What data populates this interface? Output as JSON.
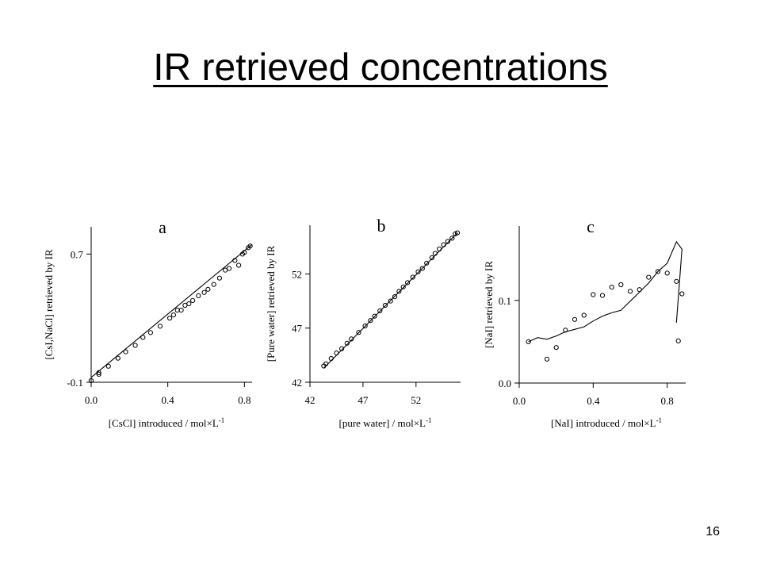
{
  "slide": {
    "title": "IR retrieved concentrations",
    "page_number": "16"
  },
  "chart_data": [
    {
      "type": "scatter",
      "panel_label": "a",
      "xlabel": "[CsCl] introduced / mol×L",
      "xlabel_sup": "-1",
      "ylabel": "[CsI,NaCl] retrieved by IR",
      "xlim": [
        0.0,
        0.84
      ],
      "ylim": [
        -0.1,
        0.87
      ],
      "xticks": [
        0.0,
        0.4,
        0.8
      ],
      "xtick_labels": [
        "0.0",
        "0.4",
        "0.8"
      ],
      "yticks": [
        -0.1,
        0.7
      ],
      "ytick_labels": [
        "-0.1",
        "0.7"
      ],
      "grid": false,
      "series": [
        {
          "kind": "points",
          "x": [
            0.0,
            0.04,
            0.04,
            0.09,
            0.14,
            0.18,
            0.23,
            0.27,
            0.31,
            0.36,
            0.41,
            0.43,
            0.45,
            0.47,
            0.49,
            0.51,
            0.53,
            0.56,
            0.59,
            0.61,
            0.64,
            0.67,
            0.7,
            0.72,
            0.75,
            0.77,
            0.79,
            0.8,
            0.82,
            0.83
          ],
          "y": [
            -0.09,
            -0.04,
            -0.05,
            0.0,
            0.05,
            0.09,
            0.13,
            0.18,
            0.21,
            0.25,
            0.3,
            0.32,
            0.35,
            0.35,
            0.38,
            0.39,
            0.41,
            0.44,
            0.46,
            0.48,
            0.51,
            0.55,
            0.6,
            0.61,
            0.66,
            0.63,
            0.7,
            0.71,
            0.74,
            0.75
          ]
        },
        {
          "kind": "line",
          "x": [
            0.0,
            0.84
          ],
          "y": [
            -0.07,
            0.76
          ]
        }
      ]
    },
    {
      "type": "scatter",
      "panel_label": "b",
      "xlabel": "[pure water] / mol×L",
      "xlabel_sup": "-1",
      "ylabel": "[Pure water] retrieved by IR",
      "xlim": [
        42,
        56.2
      ],
      "ylim": [
        42,
        56.5
      ],
      "xticks": [
        42,
        47,
        52
      ],
      "xtick_labels": [
        "42",
        "47",
        "52"
      ],
      "yticks": [
        42,
        47,
        52
      ],
      "ytick_labels": [
        "42",
        "47",
        "52"
      ],
      "grid": false,
      "series": [
        {
          "kind": "points",
          "x": [
            43.3,
            43.5,
            44.0,
            44.5,
            45.0,
            45.5,
            45.9,
            46.6,
            47.2,
            47.7,
            48.1,
            48.6,
            49.1,
            49.6,
            50.0,
            50.4,
            50.8,
            51.2,
            51.7,
            52.2,
            52.6,
            53.0,
            53.5,
            53.8,
            54.2,
            54.6,
            55.0,
            55.4,
            55.7,
            55.9
          ],
          "y": [
            43.5,
            43.7,
            44.2,
            44.7,
            45.1,
            45.6,
            46.0,
            46.6,
            47.2,
            47.7,
            48.1,
            48.6,
            49.1,
            49.5,
            49.9,
            50.4,
            50.8,
            51.2,
            51.7,
            52.2,
            52.5,
            53.0,
            53.5,
            53.9,
            54.3,
            54.7,
            55.0,
            55.3,
            55.7,
            55.8
          ]
        },
        {
          "kind": "line",
          "x": [
            43.3,
            55.9
          ],
          "y": [
            43.3,
            55.8
          ]
        }
      ]
    },
    {
      "type": "scatter",
      "panel_label": "c",
      "xlabel": "[NaI] introduced / mol×L",
      "xlabel_sup": "-1",
      "ylabel": "[NaI] retrieved by IR",
      "xlim": [
        0.0,
        0.9
      ],
      "ylim": [
        0.0,
        0.19
      ],
      "xticks": [
        0.0,
        0.4,
        0.8
      ],
      "xtick_labels": [
        "0.0",
        "0.4",
        "0.8"
      ],
      "yticks": [
        0.0,
        0.1
      ],
      "ytick_labels": [
        "0.0",
        "0.1"
      ],
      "grid": false,
      "series": [
        {
          "kind": "points",
          "x": [
            0.05,
            0.15,
            0.2,
            0.25,
            0.3,
            0.35,
            0.4,
            0.45,
            0.5,
            0.55,
            0.6,
            0.65,
            0.7,
            0.75,
            0.8,
            0.85,
            0.86,
            0.88
          ],
          "y": [
            0.05,
            0.029,
            0.043,
            0.064,
            0.077,
            0.082,
            0.107,
            0.106,
            0.116,
            0.119,
            0.111,
            0.113,
            0.128,
            0.135,
            0.133,
            0.123,
            0.051,
            0.108
          ]
        },
        {
          "kind": "line",
          "x": [
            0.05,
            0.1,
            0.15,
            0.2,
            0.25,
            0.3,
            0.35,
            0.4,
            0.45,
            0.5,
            0.55,
            0.6,
            0.65,
            0.7,
            0.75,
            0.8,
            0.85,
            0.88,
            0.85
          ],
          "y": [
            0.05,
            0.055,
            0.053,
            0.057,
            0.062,
            0.065,
            0.068,
            0.075,
            0.081,
            0.085,
            0.088,
            0.099,
            0.11,
            0.121,
            0.135,
            0.145,
            0.171,
            0.162,
            0.073
          ]
        }
      ]
    }
  ]
}
